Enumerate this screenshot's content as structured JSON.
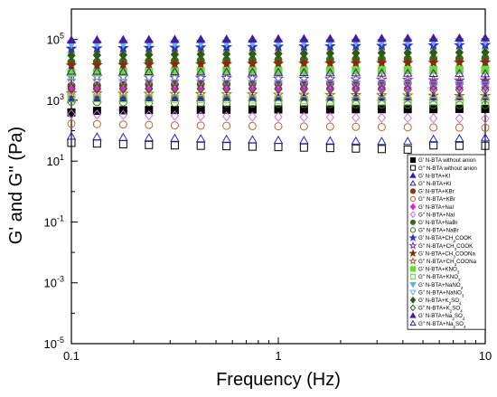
{
  "chart_data": {
    "type": "scatter",
    "title": "",
    "xlabel": "Frequency (Hz)",
    "ylabel": "G' and G'' (Pa)",
    "xscale": "log",
    "yscale": "log",
    "xlim": [
      0.1,
      10
    ],
    "ylim": [
      1e-05,
      1000000
    ],
    "x_ticks": [
      {
        "value": 0.1,
        "label": "0.1"
      },
      {
        "value": 1,
        "label": "1"
      },
      {
        "value": 10,
        "label": "10"
      }
    ],
    "y_ticks": [
      {
        "value": 1e-05,
        "base": "10",
        "exp": "-5"
      },
      {
        "value": 0.001,
        "base": "10",
        "exp": "-3"
      },
      {
        "value": 0.1,
        "base": "10",
        "exp": "-1"
      },
      {
        "value": 10,
        "base": "10",
        "exp": "1"
      },
      {
        "value": 1000,
        "base": "10",
        "exp": "3"
      },
      {
        "value": 100000,
        "base": "10",
        "exp": "5"
      }
    ],
    "grid": false,
    "legend_position": "right",
    "x": [
      0.1,
      0.133,
      0.178,
      0.237,
      0.316,
      0.422,
      0.562,
      0.75,
      1.0,
      1.33,
      1.78,
      2.37,
      3.16,
      4.22,
      5.62,
      7.5,
      10.0
    ],
    "series": [
      {
        "legend": [
          "G' N-BTA without anion"
        ],
        "marker": "square",
        "filled": true,
        "color": "#000000",
        "values": [
          400,
          450,
          470,
          480,
          480,
          490,
          490,
          500,
          500,
          500,
          500,
          510,
          510,
          510,
          510,
          520,
          520
        ]
      },
      {
        "legend": [
          "G'' N-BTA without anion"
        ],
        "marker": "square",
        "filled": false,
        "color": "#000000",
        "values": [
          40,
          38,
          36,
          34,
          33,
          32,
          31,
          30,
          29,
          28,
          27,
          26,
          25,
          24,
          33,
          32,
          32
        ]
      },
      {
        "legend": [
          "G' N-BTA+KI"
        ],
        "marker": "triangle-up",
        "filled": true,
        "color": "#2323c8",
        "values": [
          1100,
          1150,
          1180,
          1200,
          1200,
          1210,
          1220,
          1230,
          1240,
          1250,
          1250,
          1260,
          1260,
          1270,
          1270,
          1280,
          1280
        ]
      },
      {
        "legend": [
          "G'' N-BTA+KI"
        ],
        "marker": "triangle-up",
        "filled": false,
        "color": "#2323c8",
        "values": [
          65,
          62,
          60,
          58,
          56,
          54,
          52,
          50,
          48,
          47,
          46,
          45,
          44,
          44,
          52,
          55,
          58
        ]
      },
      {
        "legend": [
          "G' N-BTA+KBr"
        ],
        "marker": "circle",
        "filled": true,
        "color": "#8b3a1a",
        "values": [
          3000,
          3100,
          3200,
          3300,
          3300,
          3400,
          3400,
          3500,
          3500,
          3500,
          3600,
          3600,
          3600,
          3700,
          3700,
          3700,
          3800
        ]
      },
      {
        "legend": [
          "G'' N-BTA+KBr"
        ],
        "marker": "circle",
        "filled": false,
        "color": "#c0602a",
        "values": [
          170,
          165,
          160,
          155,
          150,
          148,
          145,
          142,
          140,
          138,
          136,
          134,
          132,
          130,
          128,
          126,
          125
        ]
      },
      {
        "legend": [
          "G' N-BTA+NaI"
        ],
        "marker": "diamond",
        "filled": true,
        "color": "#e020e0",
        "values": [
          2200,
          2250,
          2300,
          2350,
          2400,
          2420,
          2450,
          2480,
          2500,
          2520,
          2540,
          2560,
          2580,
          2600,
          2620,
          2640,
          2660
        ]
      },
      {
        "legend": [
          "G'' N-BTA+NaI"
        ],
        "marker": "diamond",
        "filled": false,
        "color": "#d070e0",
        "values": [
          350,
          340,
          330,
          320,
          310,
          300,
          295,
          290,
          285,
          280,
          275,
          270,
          265,
          260,
          255,
          250,
          250
        ]
      },
      {
        "legend": [
          "G' N-BTA+NaBr"
        ],
        "marker": "circle",
        "filled": true,
        "color": "#3a6a1a",
        "values": [
          18000,
          18500,
          19000,
          19500,
          20000,
          20300,
          20600,
          21000,
          21300,
          21600,
          22000,
          22300,
          22600,
          23000,
          23300,
          23600,
          24000
        ]
      },
      {
        "legend": [
          "G'' N-BTA+NaBr"
        ],
        "marker": "circle",
        "filled": false,
        "color": "#3a7a1a",
        "values": [
          900,
          880,
          860,
          840,
          820,
          800,
          790,
          780,
          770,
          760,
          750,
          740,
          730,
          720,
          710,
          700,
          700
        ]
      },
      {
        "legend": [
          "G' N-BTA+CH",
          "3",
          "COOK"
        ],
        "marker": "star",
        "filled": true,
        "color": "#3030c0",
        "values": [
          50000,
          51000,
          52000,
          53000,
          54000,
          55000,
          56000,
          57000,
          58000,
          59000,
          60000,
          61000,
          62000,
          63000,
          64000,
          65000,
          66000
        ]
      },
      {
        "legend": [
          "G'' N-BTA+CH",
          "3",
          "COOK"
        ],
        "marker": "star",
        "filled": false,
        "color": "#7030c0",
        "values": [
          6000,
          5900,
          5800,
          5700,
          5600,
          5500,
          5400,
          5300,
          5200,
          5100,
          5000,
          4900,
          4800,
          4700,
          4600,
          4500,
          4500
        ]
      },
      {
        "legend": [
          "G' N-BTA+CH",
          "3",
          "COONa"
        ],
        "marker": "star",
        "filled": true,
        "color": "#8b2a10",
        "values": [
          14000,
          14300,
          14600,
          14900,
          15200,
          15400,
          15600,
          15800,
          16000,
          16200,
          16400,
          16600,
          16800,
          17000,
          17200,
          17400,
          17600
        ]
      },
      {
        "legend": [
          "G'' N-BTA+CH",
          "3",
          "COONa"
        ],
        "marker": "star",
        "filled": false,
        "color": "#b0602a",
        "values": [
          1700,
          1680,
          1660,
          1640,
          1620,
          1600,
          1580,
          1560,
          1540,
          1520,
          1500,
          1480,
          1460,
          1440,
          1420,
          1400,
          1400
        ]
      },
      {
        "legend": [
          "G' N-BTA+KNO",
          "3",
          ""
        ],
        "marker": "square",
        "filled": true,
        "color": "#66dd33",
        "values": [
          8000,
          8200,
          8400,
          8600,
          8800,
          9000,
          9100,
          9200,
          9300,
          9400,
          9500,
          9600,
          9700,
          9800,
          9900,
          10000,
          10000
        ]
      },
      {
        "legend": [
          "G'' N-BTA+KNO",
          "3",
          ""
        ],
        "marker": "square",
        "filled": false,
        "color": "#66dd33",
        "values": [
          1200,
          1180,
          1160,
          1140,
          1120,
          1100,
          1080,
          1060,
          1040,
          1020,
          1000,
          990,
          980,
          970,
          960,
          950,
          950
        ]
      },
      {
        "legend": [
          "G' N-BTA+NaNO",
          "3",
          ""
        ],
        "marker": "triangle-down",
        "filled": true,
        "color": "#5fb0f0",
        "values": [
          70000,
          71000,
          72000,
          73000,
          74000,
          75000,
          76000,
          77000,
          78000,
          79000,
          80000,
          81000,
          82000,
          83000,
          84000,
          85000,
          86000
        ]
      },
      {
        "legend": [
          "G'' N-BTA+NaNO",
          "3",
          ""
        ],
        "marker": "triangle-down",
        "filled": false,
        "color": "#5fb0f0",
        "values": [
          4000,
          3950,
          3900,
          3850,
          3800,
          3750,
          3700,
          3650,
          3600,
          3550,
          3500,
          3450,
          3400,
          3350,
          3300,
          3250,
          3200
        ]
      },
      {
        "legend": [
          "G' N-BTA+K",
          "2",
          "SO",
          "4",
          ""
        ],
        "marker": "diamond",
        "filled": true,
        "color": "#2d5a16",
        "values": [
          30000,
          30500,
          31000,
          31500,
          32000,
          32500,
          33000,
          33500,
          34000,
          34500,
          35000,
          35500,
          36000,
          36500,
          37000,
          37500,
          38000
        ]
      },
      {
        "legend": [
          "G'' N-BTA+K",
          "2",
          "SO",
          "4",
          ""
        ],
        "marker": "diamond",
        "filled": false,
        "color": "#2d5a16",
        "values": [
          2500,
          2480,
          2460,
          2440,
          2420,
          2400,
          2380,
          2360,
          2340,
          2320,
          2300,
          2280,
          2260,
          2240,
          2220,
          2200,
          2200
        ]
      },
      {
        "legend": [
          "G' N-BTA+Na",
          "2",
          "SO",
          "4",
          ""
        ],
        "marker": "triangle-up",
        "filled": true,
        "color": "#4a1a9a",
        "values": [
          95000,
          96000,
          97000,
          98000,
          99000,
          100000,
          101000,
          102000,
          103000,
          104000,
          105000,
          106000,
          107000,
          108000,
          109000,
          110000,
          111000
        ]
      },
      {
        "legend": [
          "G'' N-BTA+Na",
          "2",
          "SO",
          "4",
          ""
        ],
        "marker": "triangle-up",
        "filled": false,
        "color": "#4a1a9a",
        "values": [
          9000,
          8900,
          8800,
          8700,
          8600,
          8500,
          8400,
          8300,
          8200,
          8100,
          8000,
          7900,
          7800,
          7700,
          7600,
          7500,
          7400
        ]
      }
    ]
  }
}
